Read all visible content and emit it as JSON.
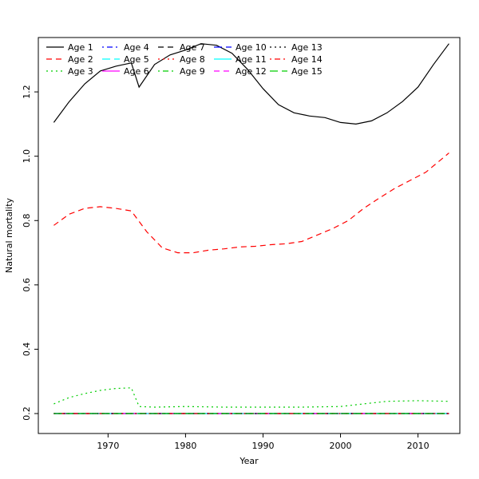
{
  "figure": {
    "background": "#ffffff",
    "axis_color": "#000000",
    "text_color": "#000000"
  },
  "chart_data": {
    "type": "line",
    "title": "",
    "xlabel": "Year",
    "ylabel": "Natural mortality",
    "xlim": [
      1961,
      2015.4
    ],
    "ylim": [
      0.138,
      1.369
    ],
    "xticks": [
      1970,
      1980,
      1990,
      2000,
      2010
    ],
    "yticks": [
      0.2,
      0.4,
      0.6,
      0.8,
      1.0,
      1.2
    ],
    "grid": false,
    "legend_position": "top-left",
    "legend_columns": 5,
    "legend_rows": 3,
    "series": [
      {
        "name": "Age 1",
        "color": "#000000",
        "dash": "solid",
        "x": [
          1963,
          1965,
          1967,
          1969,
          1971,
          1973,
          1974,
          1976,
          1978,
          1980,
          1982,
          1984,
          1986,
          1988,
          1990,
          1992,
          1994,
          1996,
          1998,
          2000,
          2002,
          2004,
          2006,
          2008,
          2010,
          2012,
          2014
        ],
        "y": [
          1.105,
          1.17,
          1.225,
          1.265,
          1.28,
          1.29,
          1.215,
          1.285,
          1.315,
          1.33,
          1.35,
          1.345,
          1.32,
          1.27,
          1.21,
          1.16,
          1.135,
          1.125,
          1.12,
          1.105,
          1.1,
          1.11,
          1.135,
          1.17,
          1.215,
          1.285,
          1.35
        ]
      },
      {
        "name": "Age 2",
        "color": "#ff0000",
        "dash": "dashed",
        "x": [
          1963,
          1965,
          1967,
          1969,
          1971,
          1973,
          1975,
          1977,
          1979,
          1981,
          1983,
          1985,
          1987,
          1989,
          1991,
          1993,
          1995,
          1997,
          1999,
          2001,
          2003,
          2005,
          2007,
          2009,
          2011,
          2013,
          2014
        ],
        "y": [
          0.785,
          0.82,
          0.838,
          0.843,
          0.838,
          0.83,
          0.765,
          0.715,
          0.7,
          0.7,
          0.708,
          0.712,
          0.718,
          0.72,
          0.725,
          0.728,
          0.735,
          0.755,
          0.775,
          0.8,
          0.838,
          0.87,
          0.9,
          0.925,
          0.95,
          0.99,
          1.01
        ]
      },
      {
        "name": "Age 3",
        "color": "#00cd00",
        "dash": "dotted",
        "x": [
          1963,
          1965,
          1967,
          1969,
          1971,
          1973,
          1974,
          1976,
          1980,
          1985,
          1990,
          1995,
          2000,
          2003,
          2006,
          2010,
          2014
        ],
        "y": [
          0.23,
          0.25,
          0.262,
          0.272,
          0.278,
          0.28,
          0.222,
          0.22,
          0.222,
          0.22,
          0.22,
          0.22,
          0.222,
          0.23,
          0.238,
          0.24,
          0.238
        ]
      },
      {
        "name": "Age 4",
        "color": "#0000ff",
        "dash": "dotdash",
        "x": [
          1963,
          2014
        ],
        "y": [
          0.2,
          0.2
        ]
      },
      {
        "name": "Age 5",
        "color": "#00ffff",
        "dash": "longdash",
        "x": [
          1963,
          2014
        ],
        "y": [
          0.2,
          0.2
        ]
      },
      {
        "name": "Age 6",
        "color": "#ff00ff",
        "dash": "solid",
        "x": [
          1963,
          2014
        ],
        "y": [
          0.2,
          0.2
        ]
      },
      {
        "name": "Age 7",
        "color": "#000000",
        "dash": "dashed",
        "x": [
          1963,
          2014
        ],
        "y": [
          0.2,
          0.2
        ]
      },
      {
        "name": "Age 8",
        "color": "#ff0000",
        "dash": "dotted",
        "x": [
          1963,
          2014
        ],
        "y": [
          0.2,
          0.2
        ]
      },
      {
        "name": "Age 9",
        "color": "#00cd00",
        "dash": "dotdash",
        "x": [
          1963,
          2014
        ],
        "y": [
          0.2,
          0.2
        ]
      },
      {
        "name": "Age 10",
        "color": "#0000ff",
        "dash": "longdash",
        "x": [
          1963,
          2014
        ],
        "y": [
          0.2,
          0.2
        ]
      },
      {
        "name": "Age 11",
        "color": "#00ffff",
        "dash": "solid",
        "x": [
          1963,
          2014
        ],
        "y": [
          0.2,
          0.2
        ]
      },
      {
        "name": "Age 12",
        "color": "#ff00ff",
        "dash": "dashed",
        "x": [
          1963,
          2014
        ],
        "y": [
          0.2,
          0.2
        ]
      },
      {
        "name": "Age 13",
        "color": "#000000",
        "dash": "dotted",
        "x": [
          1963,
          2014
        ],
        "y": [
          0.2,
          0.2
        ]
      },
      {
        "name": "Age 14",
        "color": "#ff0000",
        "dash": "dotdash",
        "x": [
          1963,
          2014
        ],
        "y": [
          0.2,
          0.2
        ]
      },
      {
        "name": "Age 15",
        "color": "#00cd00",
        "dash": "longdash",
        "x": [
          1963,
          2014
        ],
        "y": [
          0.2,
          0.2
        ]
      }
    ]
  }
}
